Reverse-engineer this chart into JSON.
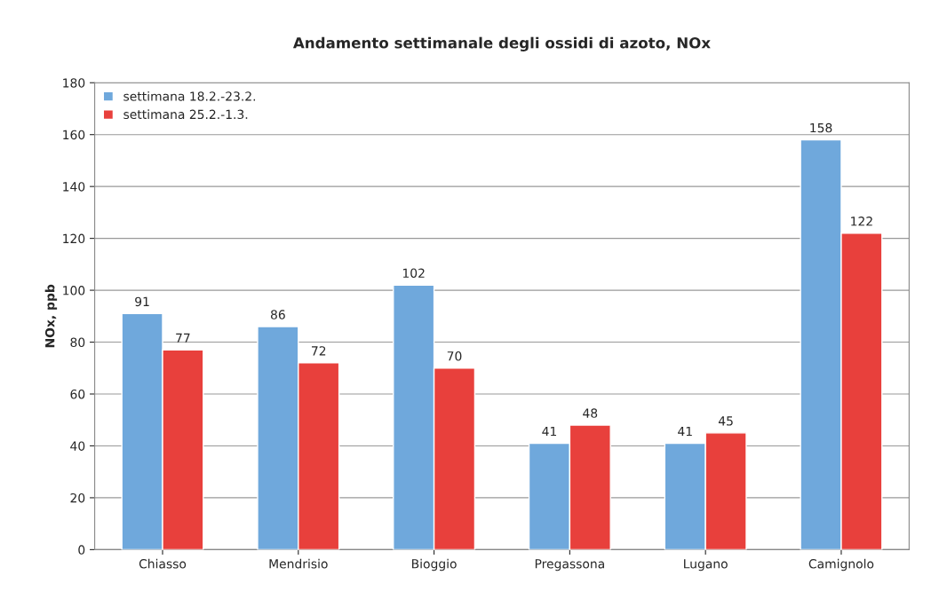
{
  "chart_data": {
    "type": "bar",
    "title": "Andamento settimanale degli ossidi di azoto, NOx",
    "ylabel": "NOx, ppb",
    "categories": [
      "Chiasso",
      "Mendrisio",
      "Bioggio",
      "Pregassona",
      "Lugano",
      "Camignolo"
    ],
    "series": [
      {
        "name": "settimana 18.2.-23.2.",
        "color": "#6fa8dc",
        "values": [
          91,
          86,
          102,
          41,
          41,
          158
        ]
      },
      {
        "name": "settimana 25.2.-1.3.",
        "color": "#e8403c",
        "values": [
          77,
          72,
          70,
          48,
          45,
          122
        ]
      }
    ],
    "ylim": [
      0,
      180
    ],
    "yticks": [
      0,
      20,
      40,
      60,
      80,
      100,
      120,
      140,
      160,
      180
    ],
    "grid": "y",
    "legend": "top left",
    "data_labels": true
  }
}
